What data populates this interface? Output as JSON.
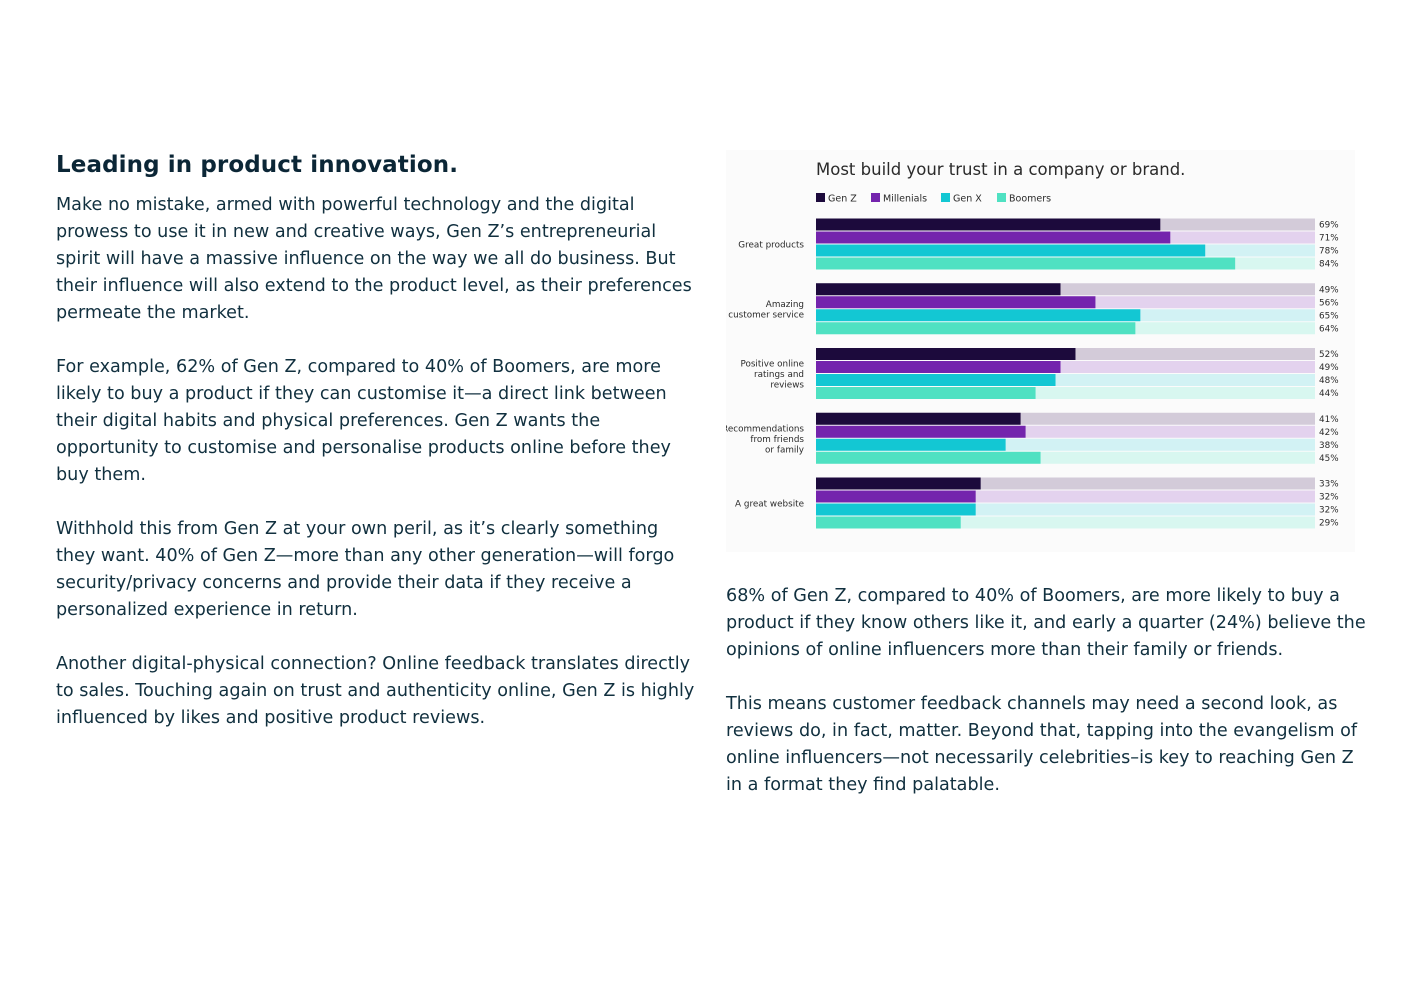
{
  "left": {
    "heading": "Leading in product innovation.",
    "paragraphs": [
      "Make no mistake, armed with powerful technology and the digital prowess to use it in new and creative ways, Gen Z’s entrepreneurial spirit will have a massive influence on the way we all do business. But their influence will also extend to the product level, as their preferences permeate the market.",
      "For example, 62% of Gen Z, compared to 40% of Boomers, are more likely to buy a product if they can customise it—a direct link between their digital habits and physical preferences. Gen Z wants the opportunity to customise and personalise products online before they buy them.",
      "Withhold this from Gen Z at your own peril, as it’s clearly something they want. 40% of Gen Z—more than any other generation—will forgo security/privacy concerns and provide their data if they receive a personalized experience in return.",
      "Another digital-physical connection? Online feedback translates directly to sales. Touching again on trust and authenticity online, Gen Z is highly influenced by likes and positive product reviews."
    ]
  },
  "right": {
    "paragraphs": [
      "68% of Gen Z, compared to 40% of Boomers, are more likely to buy a product if they know others like it, and early a quarter (24%) believe the opinions of online influencers more than their family or friends.",
      "This means customer feedback channels may need a second look, as reviews do, in fact, matter. Beyond that, tapping into the evangelism of online influencers—not necessarily celebrities–is key to reaching Gen Z in a format they find palatable."
    ]
  },
  "chart_data": {
    "type": "bar",
    "orientation": "horizontal",
    "title": "Most build your trust in a company or brand.",
    "legend_position": "top-left",
    "xlim": [
      0,
      100
    ],
    "value_suffix": "%",
    "categories": [
      [
        "Great products"
      ],
      [
        "Amazing",
        "customer service"
      ],
      [
        "Positive online",
        "ratings and",
        "reviews"
      ],
      [
        "Recommendations",
        "from friends",
        "or family"
      ],
      [
        "A great website"
      ]
    ],
    "series": [
      {
        "name": "Gen Z",
        "color": "#1c0a3c",
        "track": "#d3cbd9",
        "values": [
          69,
          49,
          52,
          41,
          33
        ]
      },
      {
        "name": "Millenials",
        "color": "#7424ad",
        "track": "#e3d2ee",
        "values": [
          71,
          56,
          49,
          42,
          32
        ]
      },
      {
        "name": "Gen X",
        "color": "#13c7d3",
        "track": "#d2f2f4",
        "values": [
          78,
          65,
          48,
          38,
          32
        ]
      },
      {
        "name": "Boomers",
        "color": "#4fe1c2",
        "track": "#d8f7f0",
        "values": [
          84,
          64,
          44,
          45,
          29
        ]
      }
    ]
  }
}
